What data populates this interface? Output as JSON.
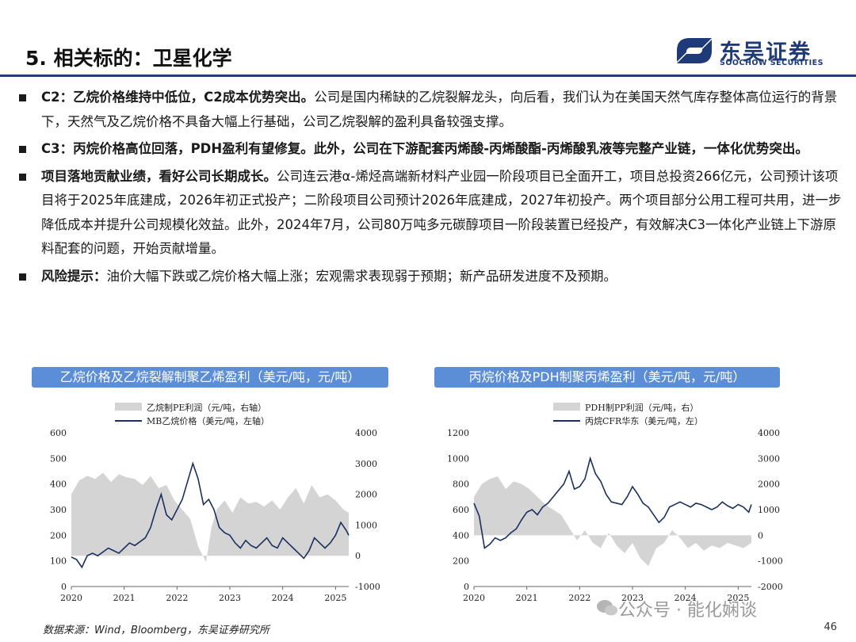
{
  "header": {
    "title": "5. 相关标的：卫星化学",
    "logo_cn": "东吴证券",
    "logo_en": "SOOCHOW SECURITIES"
  },
  "bullets": [
    {
      "bold": "C2：乙烷价格维持中低位，C2成本优势突出。",
      "text": "公司是国内稀缺的乙烷裂解龙头，向后看，我们认为在美国天然气库存整体高位运行的背景下，天然气及乙烷价格不具备大幅上行基础，公司乙烷裂解的盈利具备较强支撑。"
    },
    {
      "bold": "C3：丙烷价格高位回落，PDH盈利有望修复。此外，公司在下游配套丙烯酸-丙烯酸酯-丙烯酸乳液等完整产业链，一体化优势突出。",
      "text": ""
    },
    {
      "bold": "项目落地贡献业绩，看好公司长期成长。",
      "text": "公司连云港α-烯烃高端新材料产业园一阶段项目已全面开工，项目总投资266亿元，公司预计该项目将于2025年底建成，2026年初正式投产；二阶段项目公司预计2026年底建成，2027年初投产。两个项目部分公用工程可共用，进一步降低成本并提升公司规模化效益。此外，2024年7月，公司80万吨多元碳醇项目一阶段装置已经投产，有效解决C3一体化产业链上下游原料配套的问题，开始贡献增量。"
    },
    {
      "bold": "风险提示：",
      "text": "油价大幅下跌或乙烷价格大幅上涨；宏观需求表现弱于预期；新产品研发进度不及预期。"
    }
  ],
  "footer": {
    "source": "数据来源：Wind，Bloomberg，东吴证券研究所",
    "page": "46",
    "watermark": "公众号 · 能化娴谈"
  },
  "colors": {
    "accent": "#1f3f7a",
    "panel": "#5b8ed6",
    "area": "#d4d4d4",
    "line": "#1b2f5e"
  },
  "chart_data": [
    {
      "type": "line",
      "title": "乙烷价格及乙烷裂解制聚乙烯盈利（美元/吨，元/吨）",
      "x_ticks": [
        "2020",
        "2021",
        "2022",
        "2023",
        "2024",
        "2025"
      ],
      "xlim": [
        2020.0,
        2025.25
      ],
      "left_ticks": [
        "0",
        "100",
        "200",
        "300",
        "400",
        "500",
        "600"
      ],
      "right_ticks": [
        "-1000",
        "0",
        "1000",
        "2000",
        "3000",
        "4000"
      ],
      "left_ylim": [
        0,
        600
      ],
      "right_ylim": [
        -1000,
        4000
      ],
      "series": [
        {
          "name": "乙烷制PE利润（元/吨，右轴）",
          "kind": "area",
          "axis": "right",
          "x": [
            2020.0,
            2020.15,
            2020.3,
            2020.45,
            2020.6,
            2020.75,
            2020.9,
            2021.05,
            2021.2,
            2021.35,
            2021.5,
            2021.65,
            2021.8,
            2021.95,
            2022.1,
            2022.25,
            2022.4,
            2022.55,
            2022.65,
            2022.75,
            2022.9,
            2023.05,
            2023.2,
            2023.35,
            2023.5,
            2023.65,
            2023.8,
            2023.95,
            2024.1,
            2024.25,
            2024.4,
            2024.55,
            2024.7,
            2024.85,
            2025.0,
            2025.15,
            2025.25
          ],
          "y": [
            2000,
            2450,
            2600,
            2500,
            2700,
            2400,
            2650,
            2550,
            2500,
            2300,
            2600,
            2200,
            2300,
            1800,
            1500,
            1200,
            300,
            -200,
            900,
            1500,
            1800,
            1400,
            1900,
            1700,
            1750,
            1600,
            1800,
            1500,
            1900,
            2200,
            1700,
            2300,
            1900,
            2000,
            1800,
            1500,
            1400
          ]
        },
        {
          "name": "MB乙烷价格（美元/吨，左轴）",
          "kind": "line",
          "axis": "left",
          "x": [
            2020.0,
            2020.1,
            2020.2,
            2020.3,
            2020.4,
            2020.5,
            2020.6,
            2020.7,
            2020.8,
            2020.9,
            2021.0,
            2021.1,
            2021.2,
            2021.3,
            2021.4,
            2021.5,
            2021.6,
            2021.7,
            2021.8,
            2021.9,
            2022.0,
            2022.1,
            2022.2,
            2022.3,
            2022.4,
            2022.5,
            2022.6,
            2022.7,
            2022.8,
            2022.9,
            2023.0,
            2023.1,
            2023.2,
            2023.3,
            2023.4,
            2023.5,
            2023.6,
            2023.7,
            2023.8,
            2023.9,
            2024.0,
            2024.1,
            2024.2,
            2024.3,
            2024.4,
            2024.5,
            2024.6,
            2024.7,
            2024.8,
            2024.9,
            2025.0,
            2025.1,
            2025.2,
            2025.25
          ],
          "y": [
            115,
            105,
            75,
            120,
            130,
            120,
            135,
            150,
            140,
            130,
            150,
            170,
            160,
            175,
            190,
            230,
            300,
            360,
            280,
            260,
            300,
            340,
            410,
            480,
            420,
            320,
            340,
            300,
            230,
            210,
            200,
            170,
            150,
            180,
            160,
            150,
            170,
            190,
            160,
            150,
            190,
            170,
            150,
            130,
            110,
            140,
            190,
            170,
            150,
            170,
            200,
            250,
            220,
            200
          ]
        }
      ]
    },
    {
      "type": "line",
      "title": "丙烷价格及PDH制聚丙烯盈利（美元/吨，元/吨）",
      "x_ticks": [
        "2020",
        "2021",
        "2022",
        "2023",
        "2024",
        "2025"
      ],
      "xlim": [
        2020.0,
        2025.25
      ],
      "left_ticks": [
        "0",
        "200",
        "400",
        "600",
        "800",
        "1000",
        "1200"
      ],
      "right_ticks": [
        "-2000",
        "-1000",
        "0",
        "1000",
        "2000",
        "3000",
        "4000"
      ],
      "left_ylim": [
        0,
        1200
      ],
      "right_ylim": [
        -2000,
        4000
      ],
      "series": [
        {
          "name": "PDH制PP利润（元/吨，右）",
          "kind": "area",
          "axis": "right",
          "x": [
            2020.0,
            2020.15,
            2020.3,
            2020.45,
            2020.6,
            2020.75,
            2020.9,
            2021.05,
            2021.2,
            2021.35,
            2021.5,
            2021.65,
            2021.8,
            2021.95,
            2022.1,
            2022.25,
            2022.4,
            2022.55,
            2022.7,
            2022.85,
            2023.0,
            2023.15,
            2023.3,
            2023.45,
            2023.6,
            2023.75,
            2023.9,
            2024.05,
            2024.2,
            2024.35,
            2024.5,
            2024.65,
            2024.8,
            2024.95,
            2025.1,
            2025.25
          ],
          "y": [
            1500,
            2000,
            2200,
            2300,
            1800,
            2100,
            2000,
            1800,
            1500,
            1200,
            1000,
            800,
            300,
            -200,
            200,
            -300,
            -500,
            100,
            -400,
            -700,
            -300,
            -900,
            -1200,
            -500,
            -300,
            200,
            -100,
            -500,
            -300,
            -600,
            -400,
            -500,
            -300,
            -400,
            -500,
            -300
          ]
        },
        {
          "name": "丙烷CFR华东（美元/吨，左）",
          "kind": "line",
          "axis": "left",
          "x": [
            2020.0,
            2020.1,
            2020.2,
            2020.3,
            2020.4,
            2020.5,
            2020.6,
            2020.7,
            2020.8,
            2020.9,
            2021.0,
            2021.1,
            2021.2,
            2021.3,
            2021.4,
            2021.5,
            2021.6,
            2021.7,
            2021.8,
            2021.9,
            2022.0,
            2022.1,
            2022.2,
            2022.3,
            2022.4,
            2022.5,
            2022.6,
            2022.7,
            2022.8,
            2022.9,
            2023.0,
            2023.1,
            2023.2,
            2023.3,
            2023.4,
            2023.5,
            2023.6,
            2023.7,
            2023.8,
            2023.9,
            2024.0,
            2024.1,
            2024.2,
            2024.3,
            2024.4,
            2024.5,
            2024.6,
            2024.7,
            2024.8,
            2024.9,
            2025.0,
            2025.1,
            2025.2,
            2025.25
          ],
          "y": [
            650,
            550,
            300,
            330,
            380,
            360,
            380,
            420,
            450,
            520,
            580,
            600,
            560,
            620,
            650,
            700,
            750,
            800,
            900,
            760,
            780,
            840,
            1000,
            880,
            820,
            720,
            660,
            650,
            640,
            700,
            780,
            720,
            650,
            620,
            560,
            500,
            540,
            620,
            640,
            660,
            640,
            620,
            650,
            640,
            620,
            600,
            620,
            660,
            630,
            610,
            640,
            620,
            580,
            640
          ]
        }
      ]
    }
  ]
}
